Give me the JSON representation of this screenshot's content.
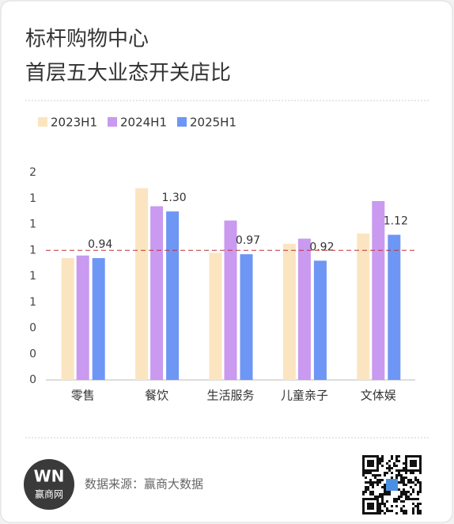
{
  "chart_data": {
    "type": "bar",
    "title": [
      "标杆购物中心",
      "首层五大业态开关店比"
    ],
    "categories": [
      "零售",
      "餐饮",
      "生活服务",
      "儿童亲子",
      "文体娱"
    ],
    "series": [
      {
        "name": "2023H1",
        "color": "#fbe5c0",
        "values": [
          0.94,
          1.48,
          0.98,
          1.05,
          1.13
        ]
      },
      {
        "name": "2024H1",
        "color": "#c99af0",
        "values": [
          0.96,
          1.34,
          1.23,
          1.09,
          1.38
        ]
      },
      {
        "name": "2025H1",
        "color": "#6e96f5",
        "values": [
          0.94,
          1.3,
          0.97,
          0.92,
          1.12
        ],
        "value_labels": [
          "0.94",
          "1.30",
          "0.97",
          "0.92",
          "1.12"
        ]
      }
    ],
    "ylim": [
      0,
      1.6
    ],
    "yticks": [
      {
        "value": 0,
        "label": "0"
      },
      {
        "value": 0.2,
        "label": "0"
      },
      {
        "value": 0.4,
        "label": "0"
      },
      {
        "value": 0.6,
        "label": "1"
      },
      {
        "value": 0.8,
        "label": "1"
      },
      {
        "value": 1.0,
        "label": "1"
      },
      {
        "value": 1.2,
        "label": "1"
      },
      {
        "value": 1.4,
        "label": "1"
      },
      {
        "value": 1.6,
        "label": "2"
      }
    ],
    "reference_line": 1,
    "reference_color": "#c0303a",
    "legend": "top-left",
    "grid": false
  },
  "footer": {
    "logo_mark": "WN",
    "logo_text": "赢商网",
    "source": "数据来源：赢商大数据"
  }
}
